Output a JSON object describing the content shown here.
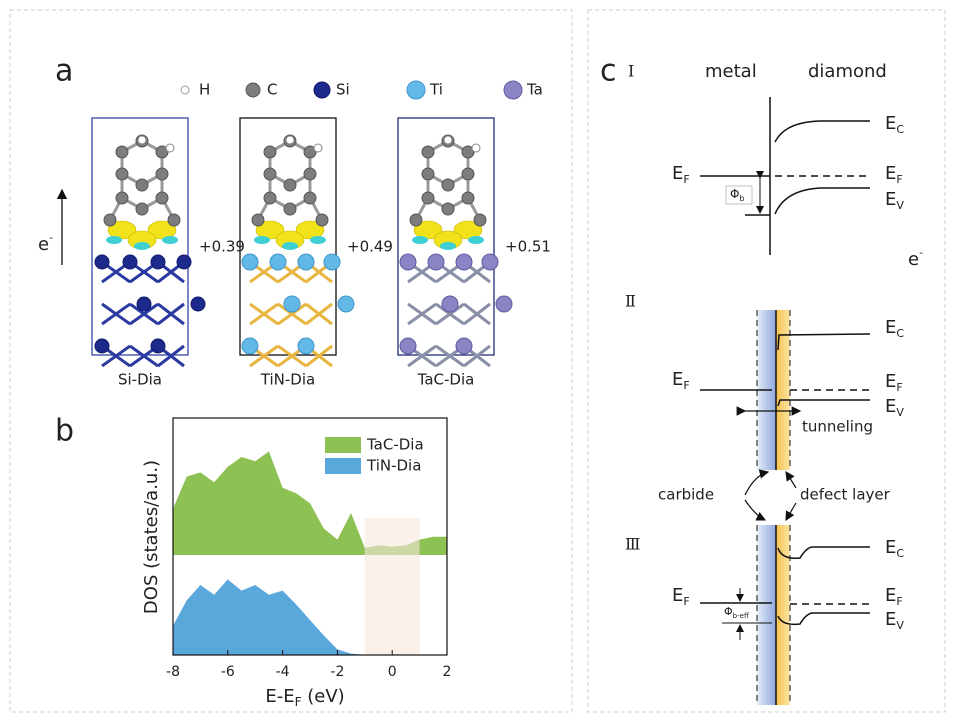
{
  "figure": {
    "a": {
      "label": "a",
      "legend": [
        "H",
        "C",
        "Si",
        "Ti",
        "Ta"
      ],
      "electron": {
        "base": "e",
        "sup": "-"
      },
      "structures": [
        {
          "name": "Si-Dia",
          "charge": "+0.39"
        },
        {
          "name": "TiN-Dia",
          "charge": "+0.49"
        },
        {
          "name": "TaC-Dia",
          "charge": "+0.51"
        }
      ]
    },
    "b": {
      "label": "b"
    },
    "c": {
      "label": "c",
      "stages": [
        "Ⅰ",
        "Ⅱ",
        "Ⅲ"
      ],
      "metal": "metal",
      "diamond": "diamond",
      "EC": {
        "base": "E",
        "sub": "C"
      },
      "EF": {
        "base": "E",
        "sub": "F"
      },
      "EV": {
        "base": "E",
        "sub": "V"
      },
      "phi_b": {
        "base": "Φ",
        "sub": "b"
      },
      "phi_b_eff": {
        "base": "Φ",
        "sub": "b-eff"
      },
      "electron": {
        "base": "e",
        "sup": "-"
      },
      "tunneling": "tunneling",
      "carbide": "carbide",
      "defect_layer": "defect layer"
    }
  },
  "chart_data": {
    "type": "area",
    "xlabel": {
      "base": "E-E",
      "sub": "F",
      "tail": " (eV)"
    },
    "ylabel": "DOS (states/a.u.)",
    "x": [
      -8,
      -7.5,
      -7,
      -6.5,
      -6,
      -5.5,
      -5,
      -4.5,
      -4,
      -3.5,
      -3,
      -2.5,
      -2,
      -1.5,
      -1,
      -0.5,
      0,
      0.5,
      1,
      1.5,
      2
    ],
    "series": [
      {
        "name": "TaC-Dia",
        "color": "#8dc153",
        "values": [
          0.33,
          0.56,
          0.59,
          0.52,
          0.63,
          0.7,
          0.67,
          0.74,
          0.48,
          0.44,
          0.37,
          0.19,
          0.11,
          0.3,
          0.05,
          0.07,
          0.06,
          0.07,
          0.11,
          0.13,
          0.13
        ]
      },
      {
        "name": "TiN-Dia",
        "color": "#5aa7dc",
        "values": [
          0.21,
          0.39,
          0.5,
          0.43,
          0.54,
          0.46,
          0.5,
          0.43,
          0.46,
          0.36,
          0.25,
          0.14,
          0.04,
          0.01,
          0,
          0,
          0,
          0,
          0,
          0,
          0
        ]
      }
    ],
    "xlim": [
      -8,
      2
    ],
    "xticks": [
      -8,
      -6,
      -4,
      -2,
      0,
      2
    ],
    "ylim": [
      0,
      1
    ],
    "highlight_x": [
      -1,
      1
    ],
    "highlight_color": "#f6e8dc"
  }
}
